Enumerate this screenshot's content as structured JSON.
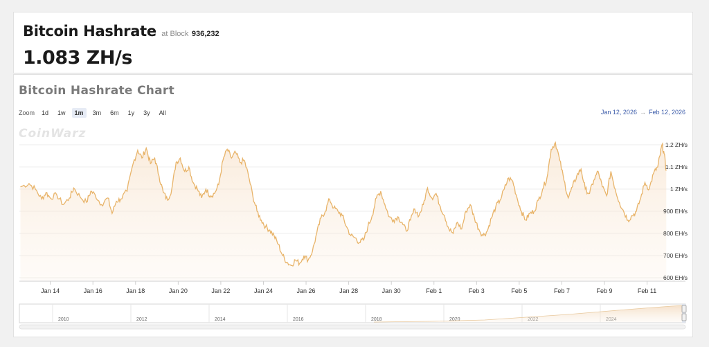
{
  "header": {
    "title": "Bitcoin Hashrate",
    "block_prefix": "at Block",
    "block_number": "936,232",
    "current_hashrate": "1.083 ZH/s"
  },
  "chart": {
    "zoom_label": "Zoom",
    "zoom_buttons": [
      "1d",
      "1w",
      "1m",
      "3m",
      "6m",
      "1y",
      "3y",
      "All"
    ],
    "zoom_active": "1m",
    "range_from": "Jan 12, 2026",
    "range_arrow": "→",
    "range_to": "Feb 12, 2026",
    "watermark": "CoinWarz",
    "line_color": "#e8b46a",
    "navigator_years": [
      "2010",
      "2012",
      "2014",
      "2016",
      "2018",
      "2020",
      "2022",
      "2024"
    ]
  },
  "chart_data": {
    "type": "area",
    "title": "Bitcoin Hashrate Chart",
    "xlabel": "",
    "ylabel": "",
    "x_ticks": [
      "Jan 14",
      "Jan 16",
      "Jan 18",
      "Jan 20",
      "Jan 22",
      "Jan 24",
      "Jan 26",
      "Jan 28",
      "Jan 30",
      "Feb 1",
      "Feb 3",
      "Feb 5",
      "Feb 7",
      "Feb 9",
      "Feb 11"
    ],
    "y_ticks": [
      "600 EH/s",
      "700 EH/s",
      "800 EH/s",
      "900 EH/s",
      "1 ZH/s",
      "1.1 ZH/s",
      "1.2 ZH/s"
    ],
    "y_tick_values": [
      600,
      700,
      800,
      900,
      1000,
      1100,
      1200
    ],
    "ylim": [
      600,
      1200
    ],
    "x_range_days": [
      12.55,
      43.8
    ],
    "grid": true,
    "series": [
      {
        "values": [
          [
            12.6,
            1010
          ],
          [
            13.0,
            1025
          ],
          [
            13.3,
            1000
          ],
          [
            13.6,
            955
          ],
          [
            13.8,
            985
          ],
          [
            14.0,
            960
          ],
          [
            14.3,
            975
          ],
          [
            14.6,
            930
          ],
          [
            14.9,
            960
          ],
          [
            15.1,
            1005
          ],
          [
            15.4,
            965
          ],
          [
            15.7,
            940
          ],
          [
            15.9,
            990
          ],
          [
            16.1,
            975
          ],
          [
            16.4,
            930
          ],
          [
            16.7,
            960
          ],
          [
            16.9,
            890
          ],
          [
            17.1,
            945
          ],
          [
            17.3,
            955
          ],
          [
            17.6,
            990
          ],
          [
            17.9,
            1120
          ],
          [
            18.1,
            1175
          ],
          [
            18.3,
            1140
          ],
          [
            18.5,
            1185
          ],
          [
            18.7,
            1115
          ],
          [
            18.9,
            1140
          ],
          [
            19.1,
            1060
          ],
          [
            19.3,
            985
          ],
          [
            19.5,
            950
          ],
          [
            19.7,
            1000
          ],
          [
            19.9,
            1120
          ],
          [
            20.1,
            1140
          ],
          [
            20.3,
            1080
          ],
          [
            20.5,
            1100
          ],
          [
            20.7,
            1030
          ],
          [
            20.9,
            1000
          ],
          [
            21.1,
            960
          ],
          [
            21.3,
            1000
          ],
          [
            21.5,
            970
          ],
          [
            21.7,
            980
          ],
          [
            21.9,
            1020
          ],
          [
            22.1,
            1130
          ],
          [
            22.3,
            1180
          ],
          [
            22.5,
            1140
          ],
          [
            22.7,
            1165
          ],
          [
            22.9,
            1120
          ],
          [
            23.1,
            1130
          ],
          [
            23.3,
            1060
          ],
          [
            23.5,
            970
          ],
          [
            23.7,
            900
          ],
          [
            23.9,
            860
          ],
          [
            24.1,
            830
          ],
          [
            24.3,
            815
          ],
          [
            24.5,
            790
          ],
          [
            24.7,
            750
          ],
          [
            24.9,
            700
          ],
          [
            25.1,
            670
          ],
          [
            25.3,
            655
          ],
          [
            25.5,
            680
          ],
          [
            25.7,
            665
          ],
          [
            25.9,
            700
          ],
          [
            26.1,
            680
          ],
          [
            26.3,
            720
          ],
          [
            26.5,
            800
          ],
          [
            26.7,
            870
          ],
          [
            26.9,
            900
          ],
          [
            27.1,
            955
          ],
          [
            27.3,
            915
          ],
          [
            27.5,
            900
          ],
          [
            27.7,
            880
          ],
          [
            27.9,
            830
          ],
          [
            28.1,
            790
          ],
          [
            28.3,
            780
          ],
          [
            28.5,
            760
          ],
          [
            28.7,
            770
          ],
          [
            28.9,
            830
          ],
          [
            29.1,
            880
          ],
          [
            29.3,
            960
          ],
          [
            29.5,
            990
          ],
          [
            29.7,
            930
          ],
          [
            29.9,
            875
          ],
          [
            30.1,
            860
          ],
          [
            30.3,
            875
          ],
          [
            30.5,
            850
          ],
          [
            30.7,
            810
          ],
          [
            30.9,
            860
          ],
          [
            31.1,
            910
          ],
          [
            31.3,
            880
          ],
          [
            31.5,
            930
          ],
          [
            31.7,
            1005
          ],
          [
            31.9,
            960
          ],
          [
            32.1,
            980
          ],
          [
            32.3,
            920
          ],
          [
            32.5,
            880
          ],
          [
            32.7,
            820
          ],
          [
            32.9,
            800
          ],
          [
            33.1,
            850
          ],
          [
            33.3,
            820
          ],
          [
            33.5,
            900
          ],
          [
            33.7,
            930
          ],
          [
            33.9,
            870
          ],
          [
            34.1,
            820
          ],
          [
            34.3,
            790
          ],
          [
            34.5,
            810
          ],
          [
            34.7,
            870
          ],
          [
            34.9,
            920
          ],
          [
            35.1,
            950
          ],
          [
            35.3,
            1000
          ],
          [
            35.5,
            1050
          ],
          [
            35.7,
            1035
          ],
          [
            35.9,
            960
          ],
          [
            36.1,
            900
          ],
          [
            36.3,
            860
          ],
          [
            36.5,
            890
          ],
          [
            36.7,
            900
          ],
          [
            36.9,
            950
          ],
          [
            37.1,
            1000
          ],
          [
            37.3,
            1050
          ],
          [
            37.5,
            1180
          ],
          [
            37.7,
            1210
          ],
          [
            37.9,
            1130
          ],
          [
            38.1,
            1040
          ],
          [
            38.3,
            960
          ],
          [
            38.5,
            1010
          ],
          [
            38.7,
            1060
          ],
          [
            38.9,
            1090
          ],
          [
            39.1,
            1000
          ],
          [
            39.3,
            980
          ],
          [
            39.5,
            1040
          ],
          [
            39.7,
            1080
          ],
          [
            39.9,
            1010
          ],
          [
            40.1,
            970
          ],
          [
            40.3,
            1080
          ],
          [
            40.5,
            1000
          ],
          [
            40.7,
            940
          ],
          [
            40.9,
            900
          ],
          [
            41.1,
            860
          ],
          [
            41.3,
            880
          ],
          [
            41.5,
            900
          ],
          [
            41.7,
            960
          ],
          [
            41.9,
            1030
          ],
          [
            42.1,
            1000
          ],
          [
            42.3,
            1070
          ],
          [
            42.5,
            1100
          ],
          [
            42.6,
            1150
          ],
          [
            42.7,
            1200
          ],
          [
            42.8,
            1160
          ],
          [
            42.9,
            1083
          ]
        ]
      }
    ]
  }
}
